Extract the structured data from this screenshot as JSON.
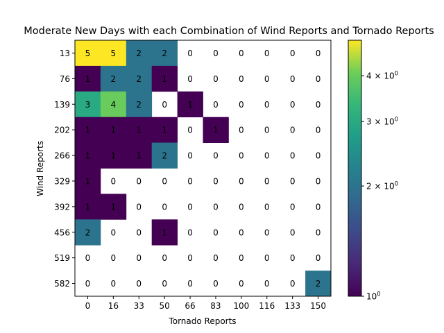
{
  "chart_data": {
    "type": "heatmap",
    "title": "Moderate New Days with each Combination of Wind Reports and Tornado Reports",
    "xlabel": "Tornado Reports",
    "ylabel": "Wind Reports",
    "x_categories": [
      "0",
      "16",
      "33",
      "50",
      "66",
      "83",
      "100",
      "116",
      "133",
      "150"
    ],
    "y_categories": [
      "13",
      "76",
      "139",
      "202",
      "266",
      "329",
      "392",
      "456",
      "519",
      "582"
    ],
    "values": [
      [
        5,
        5,
        2,
        2,
        0,
        0,
        0,
        0,
        0,
        0
      ],
      [
        1,
        2,
        2,
        1,
        0,
        0,
        0,
        0,
        0,
        0
      ],
      [
        3,
        4,
        2,
        0,
        1,
        0,
        0,
        0,
        0,
        0
      ],
      [
        1,
        1,
        1,
        1,
        0,
        1,
        0,
        0,
        0,
        0
      ],
      [
        1,
        1,
        1,
        2,
        0,
        0,
        0,
        0,
        0,
        0
      ],
      [
        1,
        0,
        0,
        0,
        0,
        0,
        0,
        0,
        0,
        0
      ],
      [
        1,
        1,
        0,
        0,
        0,
        0,
        0,
        0,
        0,
        0
      ],
      [
        2,
        0,
        0,
        1,
        0,
        0,
        0,
        0,
        0,
        0
      ],
      [
        0,
        0,
        0,
        0,
        0,
        0,
        0,
        0,
        0,
        0
      ],
      [
        0,
        0,
        0,
        0,
        0,
        0,
        0,
        0,
        0,
        2
      ]
    ],
    "color_scale": "log",
    "colormap": "viridis",
    "colorbar": {
      "range": [
        1,
        5
      ],
      "ticks": [
        {
          "value": 1,
          "base": "10",
          "exp": "0"
        },
        {
          "value": 2,
          "base": "2 × 10",
          "exp": "0"
        },
        {
          "value": 3,
          "base": "3 × 10",
          "exp": "0"
        },
        {
          "value": 4,
          "base": "4 × 10",
          "exp": "0"
        }
      ]
    },
    "zero_cells_color": "#ffffff",
    "grid": false
  }
}
